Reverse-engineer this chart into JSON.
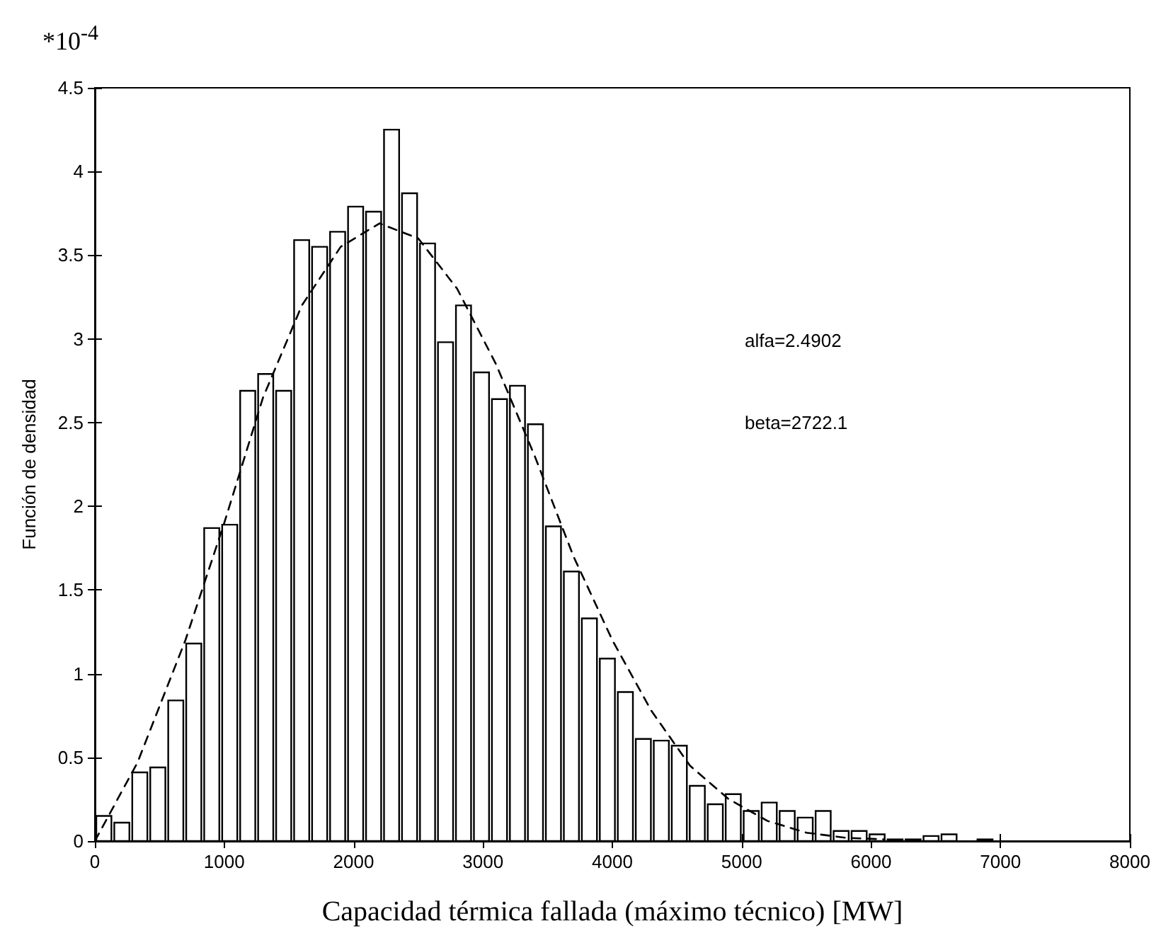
{
  "chart_data": {
    "type": "histogram",
    "xlabel": "Capacidad térmica fallada (máximo técnico) [MW]",
    "ylabel": "Función de densidad",
    "annotations": [
      "*10$^{-4}$",
      "alfa=2.4902",
      "beta=2722.1"
    ],
    "bins": [
      0,
      139,
      278,
      417,
      556,
      695,
      834,
      973,
      1112,
      1251,
      1390,
      1529,
      1668,
      1807,
      1946,
      2085,
      2224,
      2363,
      2502,
      2641,
      2780,
      2919,
      3058,
      3197,
      3336,
      3475,
      3614,
      3753,
      3892,
      4031,
      4170,
      4309,
      4448,
      4587,
      4726,
      4865,
      5004,
      5143,
      5282,
      5421,
      5560,
      5699,
      5838,
      5977,
      6116,
      6255,
      6394,
      6533,
      6672,
      6811,
      6950
    ],
    "values": [
      0.15,
      0.11,
      0.41,
      0.44,
      0.84,
      1.18,
      1.87,
      1.89,
      2.69,
      2.79,
      2.69,
      3.59,
      3.55,
      3.64,
      3.79,
      3.76,
      4.25,
      3.87,
      3.57,
      2.98,
      3.2,
      2.8,
      2.64,
      2.72,
      2.49,
      1.88,
      1.61,
      1.33,
      1.09,
      0.89,
      0.61,
      0.6,
      0.57,
      0.33,
      0.22,
      0.28,
      0.18,
      0.23,
      0.18,
      0.14,
      0.18,
      0.06,
      0.06,
      0.04,
      0.01,
      0.01,
      0.03,
      0.04,
      0,
      0.01
    ],
    "color": "#ffffff",
    "series": [
      {
        "type": "line",
        "color": "#000000",
        "line_style": "dashed",
        "x": [
          0,
          330,
          700,
          1000,
          1300,
          1600,
          1900,
          2200,
          2500,
          2800,
          3100,
          3400,
          3700,
          4000,
          4300,
          4600,
          4900,
          5200,
          5500,
          5800,
          6100
        ],
        "values": [
          0,
          0.47,
          1.2,
          1.9,
          2.65,
          3.2,
          3.55,
          3.69,
          3.6,
          3.3,
          2.85,
          2.3,
          1.7,
          1.2,
          0.78,
          0.45,
          0.25,
          0.12,
          0.05,
          0.02,
          0.01
        ]
      }
    ],
    "xlim": [
      0,
      8000
    ],
    "xticks": [
      0,
      1000,
      2000,
      3000,
      4000,
      5000,
      6000,
      7000,
      8000
    ],
    "ylim": [
      0,
      4.5
    ],
    "yticks": [
      0,
      0.5,
      1,
      1.5,
      2,
      2.5,
      3,
      3.5,
      4,
      4.5
    ],
    "grid": false,
    "marker": "none"
  }
}
